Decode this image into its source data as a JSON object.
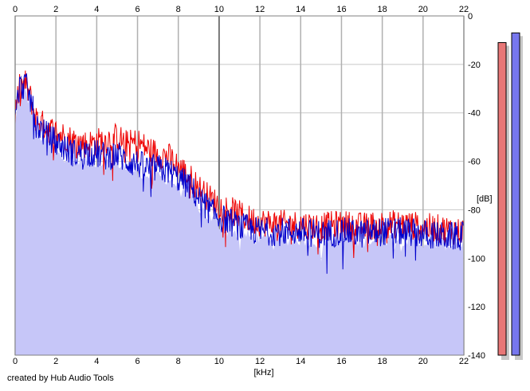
{
  "chart_data": {
    "type": "line",
    "title": "",
    "xlabel": "[kHz]",
    "ylabel": "[dB]",
    "xlim": [
      0,
      22
    ],
    "ylim": [
      -140,
      0
    ],
    "x_ticks": [
      "0",
      "2",
      "4",
      "6",
      "8",
      "10",
      "12",
      "14",
      "16",
      "18",
      "20",
      "22"
    ],
    "y_ticks": [
      "0",
      "-20",
      "-40",
      "-60",
      "-80",
      "-100",
      "-120",
      "-140"
    ],
    "grid": true,
    "legend": "none",
    "fill_color": "#c6c6f8",
    "series": [
      {
        "color": "#ee0000",
        "x": [
          0,
          0.2,
          0.5,
          0.8,
          1,
          1.5,
          2,
          2.5,
          3,
          3.5,
          4,
          4.5,
          5,
          5.5,
          6,
          6.5,
          7,
          7.5,
          8,
          8.5,
          9,
          9.5,
          10,
          10.5,
          11,
          11.5,
          12,
          13,
          14,
          15,
          16,
          17,
          18,
          19,
          20,
          21,
          22
        ],
        "values": [
          -40,
          -30,
          -28,
          -35,
          -42,
          -46,
          -48,
          -50,
          -52,
          -53,
          -52,
          -51,
          -50,
          -53,
          -52,
          -55,
          -57,
          -58,
          -62,
          -66,
          -71,
          -75,
          -78,
          -80,
          -82,
          -84,
          -85,
          -86,
          -86,
          -87,
          -86,
          -87,
          -86,
          -86,
          -87,
          -88,
          -89
        ]
      },
      {
        "color": "#0000cc",
        "x": [
          0,
          0.2,
          0.5,
          0.8,
          1,
          1.5,
          2,
          2.5,
          3,
          3.5,
          4,
          4.5,
          5,
          5.5,
          6,
          6.5,
          7,
          7.5,
          8,
          8.5,
          9,
          9.5,
          10,
          10.5,
          11,
          11.5,
          12,
          13,
          14,
          15,
          16,
          17,
          18,
          19,
          20,
          21,
          22
        ],
        "values": [
          -42,
          -30,
          -28,
          -36,
          -44,
          -49,
          -52,
          -55,
          -57,
          -56,
          -57,
          -58,
          -57,
          -60,
          -61,
          -63,
          -63,
          -64,
          -67,
          -70,
          -75,
          -80,
          -83,
          -85,
          -87,
          -88,
          -89,
          -89,
          -89,
          -90,
          -89,
          -90,
          -89,
          -89,
          -90,
          -91,
          -91
        ]
      }
    ],
    "level_meters": {
      "left": {
        "color": "#e87777",
        "level_db": -11
      },
      "right": {
        "color": "#7777ee",
        "level_db": -7
      }
    }
  },
  "footer": {
    "credit": "created by Hub Audio Tools"
  }
}
